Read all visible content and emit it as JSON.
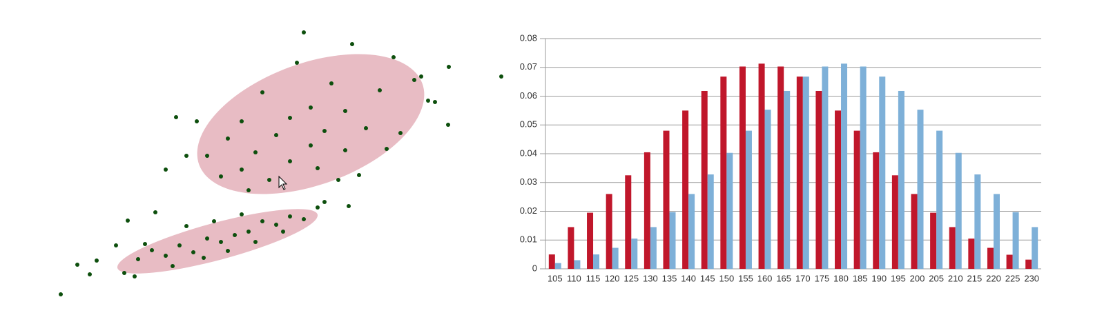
{
  "chart_data": [
    {
      "type": "scatter",
      "xlim": [
        0,
        73
      ],
      "ylim": [
        0,
        48.6
      ],
      "series": [
        {
          "color": "#0d4f0d",
          "x": [
            44,
            51,
            65,
            72.6,
            43,
            57,
            60,
            48,
            38,
            55,
            62,
            45,
            50,
            42,
            35,
            28.5,
            53,
            47,
            40,
            58,
            33,
            45,
            37,
            50,
            30,
            42,
            35,
            46,
            24,
            39,
            32,
            49,
            27,
            63,
            52,
            36,
            25.5,
            64.9,
            61,
            56
          ],
          "y": [
            43.9,
            42.2,
            38.9,
            37.5,
            39.5,
            40.3,
            37,
            36.5,
            35.2,
            35.5,
            34,
            33,
            32.5,
            31.5,
            31,
            31,
            30,
            29.6,
            29,
            29.3,
            28.5,
            27.5,
            26.5,
            26.8,
            26,
            25.2,
            24,
            24.2,
            24,
            22.5,
            23,
            22.5,
            26,
            33.8,
            23.2,
            21,
            31.6,
            30.5,
            37.5,
            27
          ]
        },
        {
          "color": "#0d4f0d",
          "x": [
            8.8,
            11.2,
            14,
            18,
            20,
            22,
            24,
            26,
            28,
            30,
            32,
            34,
            36,
            38,
            40,
            42,
            44,
            46,
            47,
            22.5,
            18.5,
            27,
            29.5,
            33,
            25,
            31,
            37,
            13,
            16.8,
            50.5,
            19.5,
            35,
            41,
            21
          ],
          "y": [
            5.9,
            10.2,
            10.8,
            9,
            11,
            12.3,
            11.5,
            13,
            12,
            14,
            13.5,
            14.5,
            15,
            16.5,
            16,
            17.2,
            16.8,
            18.5,
            19.3,
            17.8,
            16.6,
            15.8,
            11.2,
            12.2,
            10,
            16.5,
            13.5,
            8.8,
            13,
            18.7,
            8.5,
            17.5,
            15,
            13.2
          ]
        }
      ]
    },
    {
      "type": "bar",
      "grid": true,
      "ylim": [
        0,
        0.08
      ],
      "yticks": [
        0,
        0.01,
        0.02,
        0.03,
        0.04,
        0.05,
        0.06,
        0.07,
        0.08
      ],
      "categories": [
        "105",
        "110",
        "115",
        "120",
        "125",
        "130",
        "135",
        "140",
        "145",
        "150",
        "155",
        "160",
        "165",
        "170",
        "175",
        "180",
        "185",
        "190",
        "195",
        "200",
        "205",
        "210",
        "215",
        "220",
        "225",
        "230"
      ],
      "series": [
        {
          "color": "#c0172b",
          "values": [
            0.005,
            0.0145,
            0.0195,
            0.026,
            0.0325,
            0.0405,
            0.048,
            0.055,
            0.0618,
            0.0668,
            0.0703,
            0.0713,
            0.0703,
            0.0668,
            0.0618,
            0.055,
            0.048,
            0.0405,
            0.0325,
            0.026,
            0.0195,
            0.0145,
            0.0105,
            0.0073,
            0.0049,
            0.0032
          ]
        },
        {
          "color": "#7eb0d8",
          "values": [
            0.002,
            0.003,
            0.005,
            0.0073,
            0.0105,
            0.0145,
            0.0197,
            0.026,
            0.0328,
            0.0403,
            0.048,
            0.0553,
            0.0618,
            0.0668,
            0.0703,
            0.0713,
            0.0703,
            0.0668,
            0.0618,
            0.0553,
            0.048,
            0.0403,
            0.0328,
            0.026,
            0.0197,
            0.0145
          ]
        }
      ]
    }
  ]
}
